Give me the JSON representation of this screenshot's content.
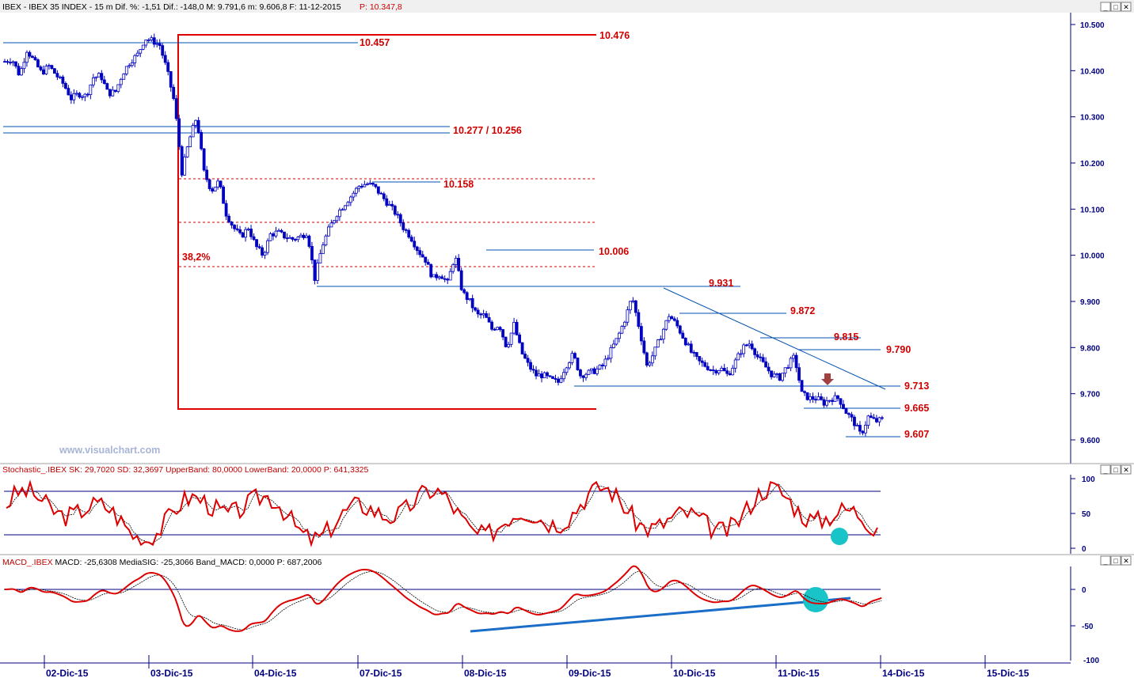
{
  "price_panel": {
    "header_black": "IBEX - IBEX 35 INDEX -  15 m  Dif. %: -1,51   Dif.: -148,0  M: 9.791,6  m: 9.606,8  F: 11-12-2015",
    "header_red": "P: 10.347,8",
    "watermark": "www.visualchart.com"
  },
  "stoch_panel": {
    "header": "Stochastic_.IBEX SK: 29,7020  SD: 32,3697  UpperBand: 80,0000  LowerBand: 20,0000  P: 641,3325"
  },
  "macd_panel": {
    "header_red": "MACD_.IBEX",
    "header_black": " MACD: -25,6308  MediaSIG: -25,3066  Band_MACD: 0,0000  P: 687,2006"
  },
  "window_buttons": [
    "_",
    "□",
    "✕"
  ],
  "colors": {
    "candle": "#0000c0",
    "level_line": "#0050b0",
    "label_red": "#d00000",
    "box_red": "#e00000",
    "indicator_red": "#dd0000",
    "highlight": "#19c4c9",
    "arrow": "#a04040"
  },
  "chart_data": [
    {
      "type": "candlestick",
      "title": "IBEX 35 INDEX 15 m",
      "y_ticks": [
        10500,
        10400,
        10300,
        10200,
        10100,
        10000,
        9900,
        9800,
        9700,
        9600
      ],
      "y_tick_labels": [
        "10.500",
        "10.400",
        "10.300",
        "10.200",
        "10.100",
        "10.000",
        "9.900",
        "9.800",
        "9.700",
        "9.600"
      ],
      "ylim": [
        9565,
        10525
      ],
      "x_tick_labels": [
        "02-Dic-15",
        "03-Dic-15",
        "04-Dic-15",
        "07-Dic-15",
        "08-Dic-15",
        "09-Dic-15",
        "10-Dic-15",
        "11-Dic-15",
        "14-Dic-15",
        "15-Dic-15"
      ],
      "close_path": [
        [
          0,
          10420
        ],
        [
          0.4,
          10425
        ],
        [
          0.8,
          10390
        ],
        [
          1.2,
          10445
        ],
        [
          1.6,
          10420
        ],
        [
          2,
          10395
        ],
        [
          2.4,
          10410
        ],
        [
          2.8,
          10390
        ],
        [
          3.2,
          10370
        ],
        [
          3.6,
          10340
        ],
        [
          4,
          10350
        ],
        [
          4.4,
          10345
        ],
        [
          4.8,
          10385
        ],
        [
          5.2,
          10390
        ],
        [
          5.6,
          10350
        ],
        [
          6,
          10355
        ],
        [
          6.4,
          10395
        ],
        [
          6.8,
          10420
        ],
        [
          7.2,
          10435
        ],
        [
          7.6,
          10470
        ],
        [
          8,
          10465
        ],
        [
          8.4,
          10455
        ],
        [
          8.8,
          10400
        ],
        [
          9.2,
          10330
        ],
        [
          9.6,
          10180
        ],
        [
          10,
          10250
        ],
        [
          10.4,
          10300
        ],
        [
          10.8,
          10180
        ],
        [
          11.2,
          10140
        ],
        [
          11.6,
          10160
        ],
        [
          12,
          10090
        ],
        [
          12.4,
          10060
        ],
        [
          12.8,
          10040
        ],
        [
          13.2,
          10060
        ],
        [
          13.6,
          10020
        ],
        [
          14,
          10000
        ],
        [
          14.4,
          10045
        ],
        [
          14.8,
          10050
        ],
        [
          15.2,
          10040
        ],
        [
          15.6,
          10035
        ],
        [
          16,
          10040
        ],
        [
          16.4,
          10050
        ],
        [
          16.8,
          9950
        ],
        [
          17.2,
          10020
        ],
        [
          17.6,
          10060
        ],
        [
          18,
          10090
        ],
        [
          18.4,
          10110
        ],
        [
          18.8,
          10130
        ],
        [
          19.2,
          10150
        ],
        [
          19.6,
          10155
        ],
        [
          20,
          10150
        ],
        [
          20.4,
          10130
        ],
        [
          20.8,
          10110
        ],
        [
          21.2,
          10090
        ],
        [
          21.6,
          10060
        ],
        [
          22,
          10040
        ],
        [
          22.4,
          10010
        ],
        [
          22.8,
          9990
        ],
        [
          23.2,
          9950
        ],
        [
          23.6,
          9960
        ],
        [
          24,
          9940
        ],
        [
          24.4,
          10000
        ],
        [
          24.8,
          9920
        ],
        [
          25.2,
          9900
        ],
        [
          25.6,
          9870
        ],
        [
          26,
          9870
        ],
        [
          26.4,
          9840
        ],
        [
          26.8,
          9850
        ],
        [
          27.2,
          9800
        ],
        [
          27.6,
          9850
        ],
        [
          28,
          9790
        ],
        [
          28.4,
          9760
        ],
        [
          28.8,
          9740
        ],
        [
          29.2,
          9740
        ],
        [
          29.6,
          9730
        ],
        [
          30,
          9725
        ],
        [
          30.4,
          9760
        ],
        [
          30.8,
          9785
        ],
        [
          31.2,
          9740
        ],
        [
          31.6,
          9745
        ],
        [
          32,
          9750
        ],
        [
          32.4,
          9760
        ],
        [
          32.8,
          9790
        ],
        [
          33.2,
          9820
        ],
        [
          33.6,
          9860
        ],
        [
          34,
          9910
        ],
        [
          34.4,
          9840
        ],
        [
          34.8,
          9760
        ],
        [
          35.2,
          9790
        ],
        [
          35.6,
          9830
        ],
        [
          36,
          9870
        ],
        [
          36.4,
          9850
        ],
        [
          36.8,
          9820
        ],
        [
          37.2,
          9790
        ],
        [
          37.6,
          9770
        ],
        [
          38,
          9760
        ],
        [
          38.4,
          9750
        ],
        [
          38.8,
          9755
        ],
        [
          39.2,
          9740
        ],
        [
          39.6,
          9770
        ],
        [
          40,
          9800
        ],
        [
          40.4,
          9810
        ],
        [
          40.8,
          9780
        ],
        [
          41.2,
          9760
        ],
        [
          41.6,
          9740
        ],
        [
          42,
          9735
        ],
        [
          42.4,
          9760
        ],
        [
          42.8,
          9780
        ],
        [
          43.2,
          9700
        ],
        [
          43.6,
          9690
        ],
        [
          44,
          9690
        ],
        [
          44.4,
          9680
        ],
        [
          44.8,
          9690
        ],
        [
          45.2,
          9690
        ],
        [
          45.6,
          9660
        ],
        [
          46,
          9640
        ],
        [
          46.4,
          9610
        ],
        [
          46.8,
          9650
        ],
        [
          47.2,
          9640
        ],
        [
          47.6,
          9645
        ]
      ],
      "levels": [
        {
          "label": "10.476",
          "value": 10476
        },
        {
          "label": "10.457",
          "value": 10457
        },
        {
          "label": "10.277 / 10.256",
          "value": 10277
        },
        {
          "label": "10.158",
          "value": 10158
        },
        {
          "label": "38,2%",
          "value": 9975
        },
        {
          "label": "10.006",
          "value": 10006
        },
        {
          "label": "9.931",
          "value": 9931
        },
        {
          "label": "9.872",
          "value": 9872
        },
        {
          "label": "9.815",
          "value": 9815
        },
        {
          "label": "9.790",
          "value": 9790
        },
        {
          "label": "9.713",
          "value": 9713
        },
        {
          "label": "9.665",
          "value": 9665
        },
        {
          "label": "9.607",
          "value": 9607
        }
      ]
    },
    {
      "type": "line",
      "title": "Stochastic",
      "y_tick_labels": [
        "100",
        "50",
        "0"
      ],
      "bands": [
        80,
        20
      ],
      "series": [
        {
          "name": "SK",
          "last": 29.702
        },
        {
          "name": "SD",
          "last": 32.3697
        }
      ]
    },
    {
      "type": "line",
      "title": "MACD",
      "y_tick_labels": [
        "0",
        "-50",
        "-100"
      ],
      "series": [
        {
          "name": "MACD",
          "last": -25.6308
        },
        {
          "name": "MediaSIG",
          "last": -25.3066
        }
      ],
      "band": 0
    }
  ]
}
